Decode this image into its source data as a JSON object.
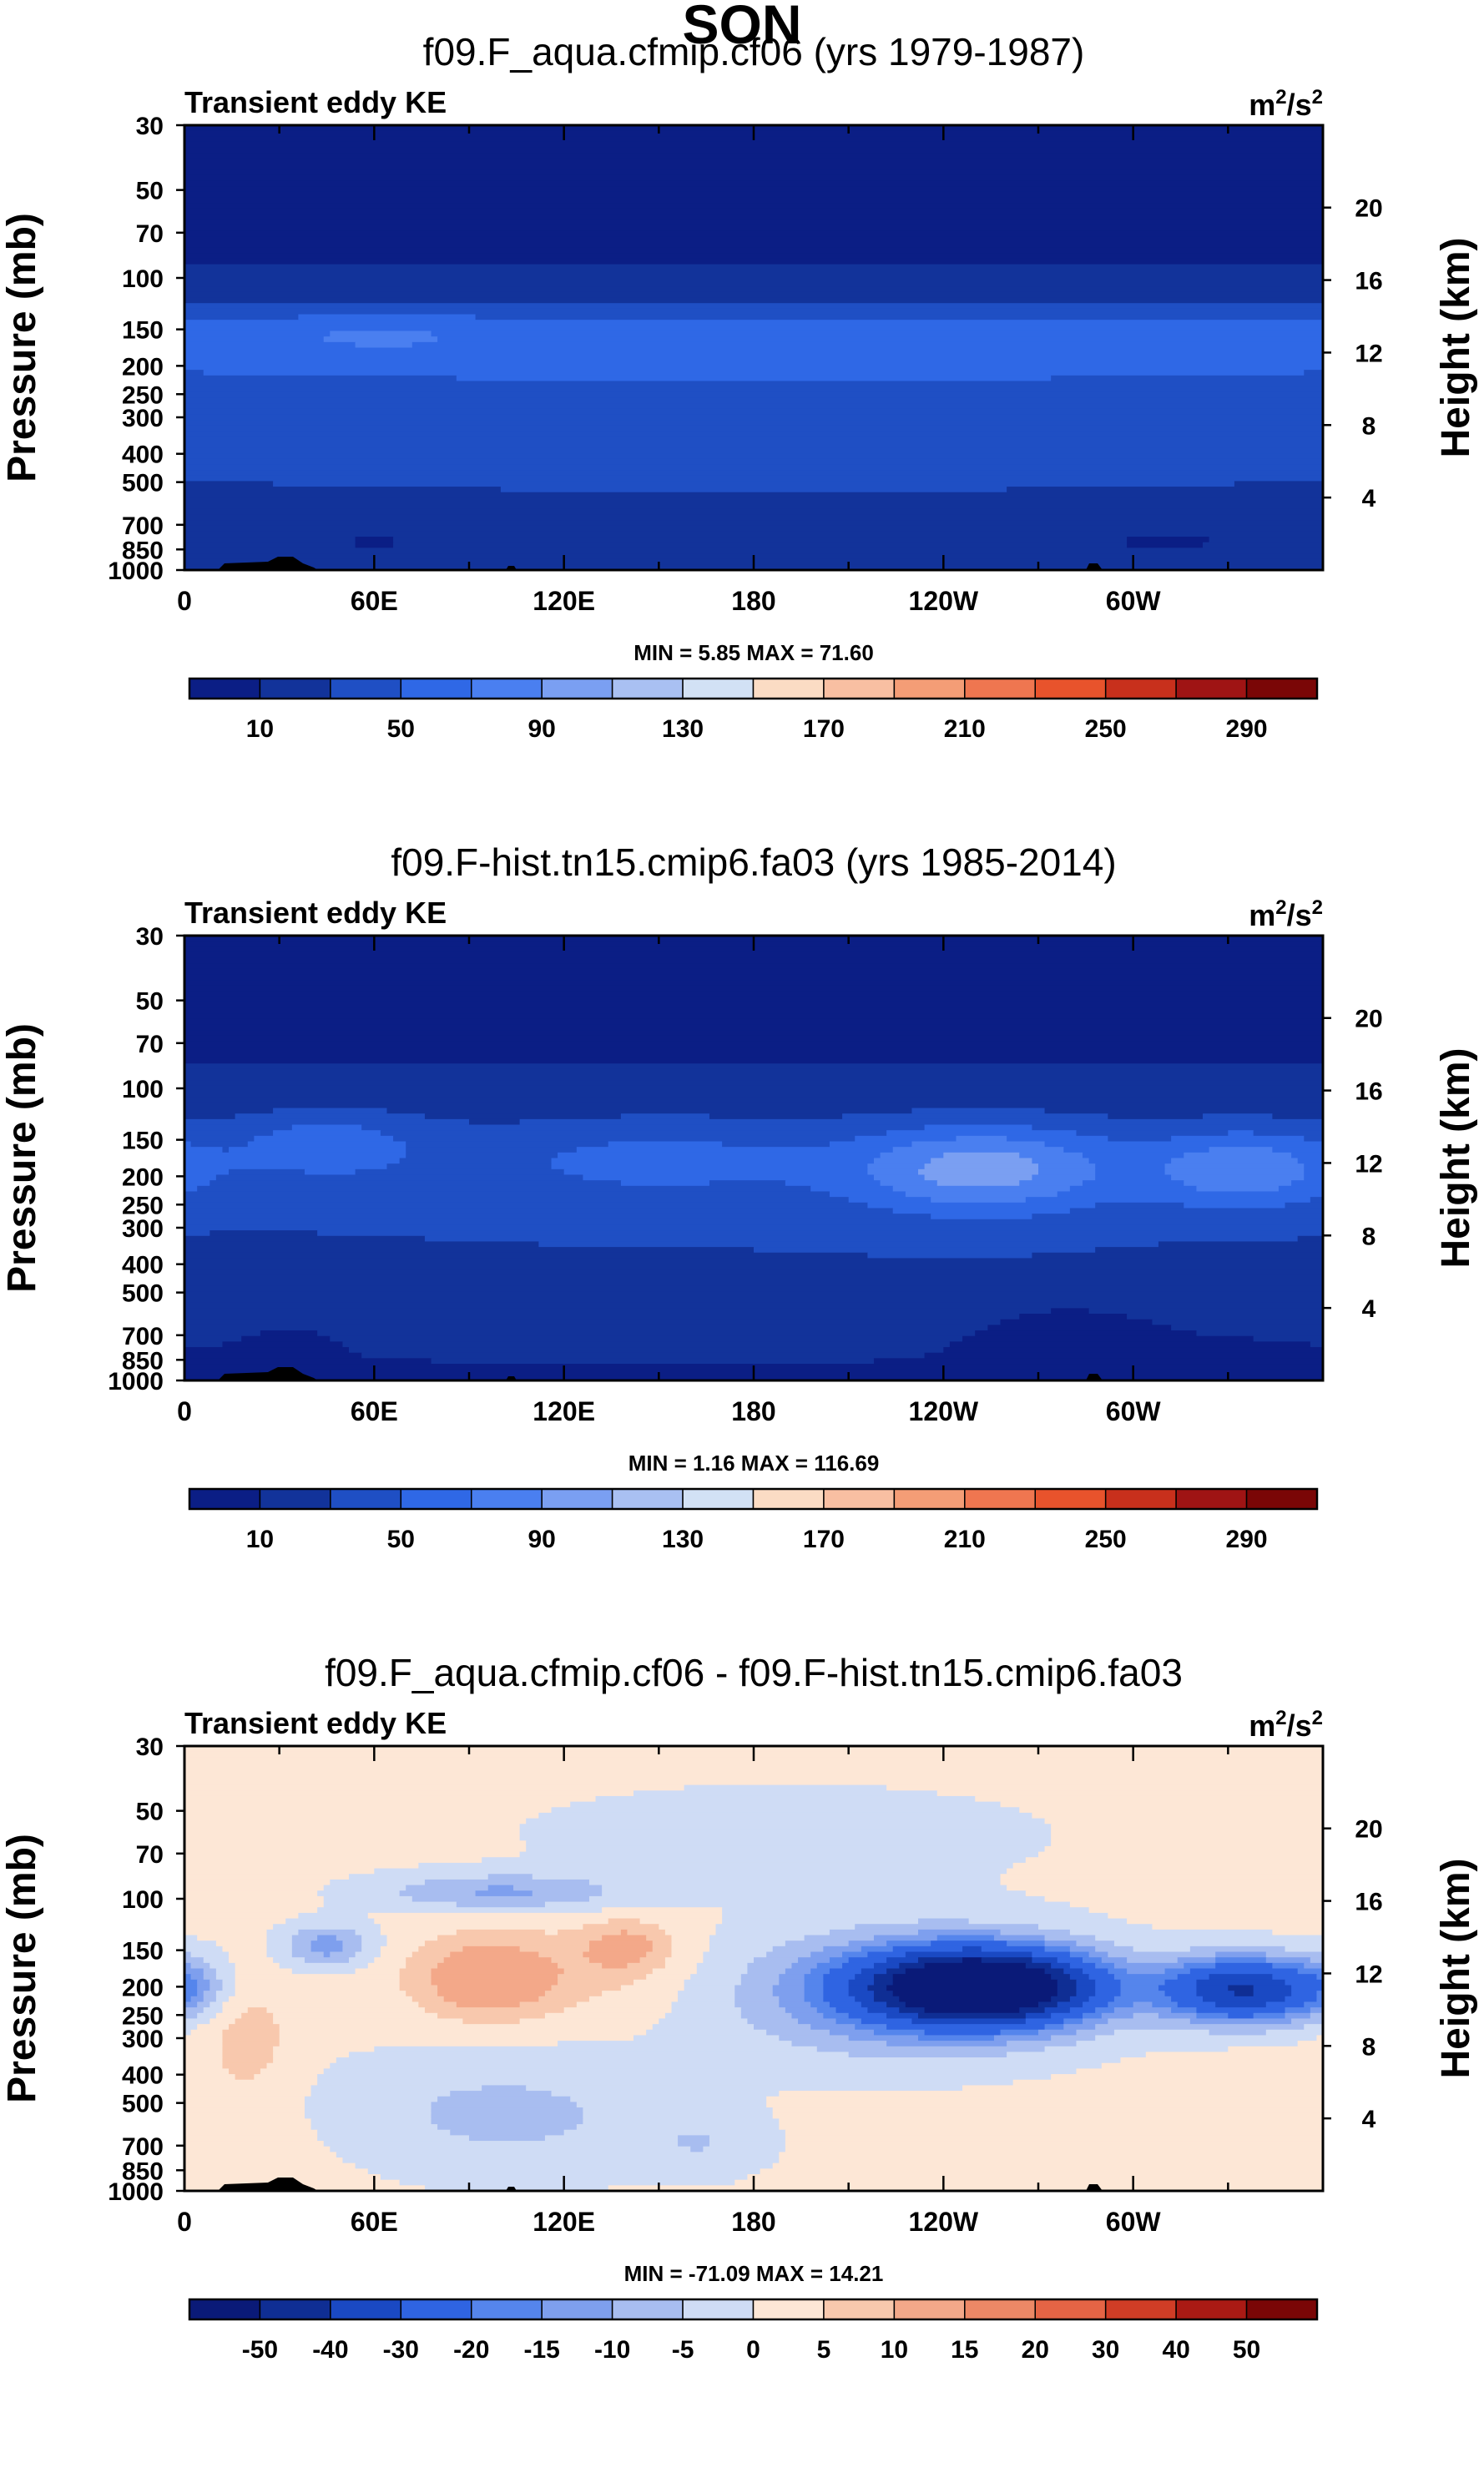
{
  "season_title": "SON",
  "colors": {
    "abs_scale": [
      "#0b1e85",
      "#12339a",
      "#1f4fc4",
      "#2f68e6",
      "#4a7ff0",
      "#7a9ff2",
      "#a9c0f2",
      "#d2e1f5",
      "#fbdcc4",
      "#f8bfa2",
      "#f49d76",
      "#ef7650",
      "#e8532c",
      "#c8301c",
      "#9f1414",
      "#7a0606"
    ],
    "diff_scale": [
      "#0a1a78",
      "#0f2e94",
      "#1a49c3",
      "#2f64e2",
      "#5585ec",
      "#7e9fee",
      "#a8bdf0",
      "#cfdcf5",
      "#fde7d6",
      "#f8c8ad",
      "#f3a889",
      "#ec8866",
      "#e56445",
      "#d03d26",
      "#aa1a14",
      "#7a0606"
    ]
  },
  "chart_data": [
    {
      "type": "heatmap",
      "title": "f09.F_aqua.cfmip.cf06 (yrs 1979-1987)",
      "left_label": "Transient eddy KE",
      "units_base": "m",
      "units_exp": "2",
      "units_mid": "/s",
      "units_exp2": "2",
      "xlabel": "",
      "ylabel": "Pressure (mb)",
      "ylabel_right": "Height (km)",
      "x_ticks": [
        "0",
        "60E",
        "120E",
        "180",
        "120W",
        "60W"
      ],
      "y_ticks": [
        "30",
        "50",
        "70",
        "100",
        "150",
        "200",
        "250",
        "300",
        "400",
        "500",
        "700",
        "850",
        "1000"
      ],
      "y_ticks_right": [
        "20",
        "16",
        "12",
        "8",
        "4"
      ],
      "min_max": "MIN =   5.85  MAX =  71.60",
      "colorbar_labels": [
        "10",
        "50",
        "90",
        "130",
        "170",
        "210",
        "250",
        "290"
      ],
      "field": "tropical_eddy_mean",
      "max": 71.6
    },
    {
      "type": "heatmap",
      "title": "f09.F-hist.tn15.cmip6.fa03 (yrs 1985-2014)",
      "left_label": "Transient eddy KE",
      "units_base": "m",
      "units_exp": "2",
      "units_mid": "/s",
      "units_exp2": "2",
      "xlabel": "",
      "ylabel": "Pressure (mb)",
      "ylabel_right": "Height (km)",
      "x_ticks": [
        "0",
        "60E",
        "120E",
        "180",
        "120W",
        "60W"
      ],
      "y_ticks": [
        "30",
        "50",
        "70",
        "100",
        "150",
        "200",
        "250",
        "300",
        "400",
        "500",
        "700",
        "850",
        "1000"
      ],
      "y_ticks_right": [
        "20",
        "16",
        "12",
        "8",
        "4"
      ],
      "min_max": "MIN =   1.16  MAX = 116.69",
      "colorbar_labels": [
        "10",
        "50",
        "90",
        "130",
        "170",
        "210",
        "250",
        "290"
      ],
      "field": "tropical_eddy_hist",
      "max": 116.69
    },
    {
      "type": "heatmap",
      "title": "f09.F_aqua.cfmip.cf06 - f09.F-hist.tn15.cmip6.fa03",
      "left_label": "Transient eddy KE",
      "units_base": "m",
      "units_exp": "2",
      "units_mid": "/s",
      "units_exp2": "2",
      "xlabel": "",
      "ylabel": "Pressure (mb)",
      "ylabel_right": "Height (km)",
      "x_ticks": [
        "0",
        "60E",
        "120E",
        "180",
        "120W",
        "60W"
      ],
      "y_ticks": [
        "30",
        "50",
        "70",
        "100",
        "150",
        "200",
        "250",
        "300",
        "400",
        "500",
        "700",
        "850",
        "1000"
      ],
      "y_ticks_right": [
        "20",
        "16",
        "12",
        "8",
        "4"
      ],
      "min_max": "MIN = -71.09  MAX =  14.21",
      "colorbar_labels": [
        "-50",
        "-40",
        "-30",
        "-20",
        "-15",
        "-10",
        "-5",
        "0",
        "5",
        "10",
        "15",
        "20",
        "30",
        "40",
        "50"
      ],
      "field": "difference",
      "min": -71.09
    }
  ]
}
